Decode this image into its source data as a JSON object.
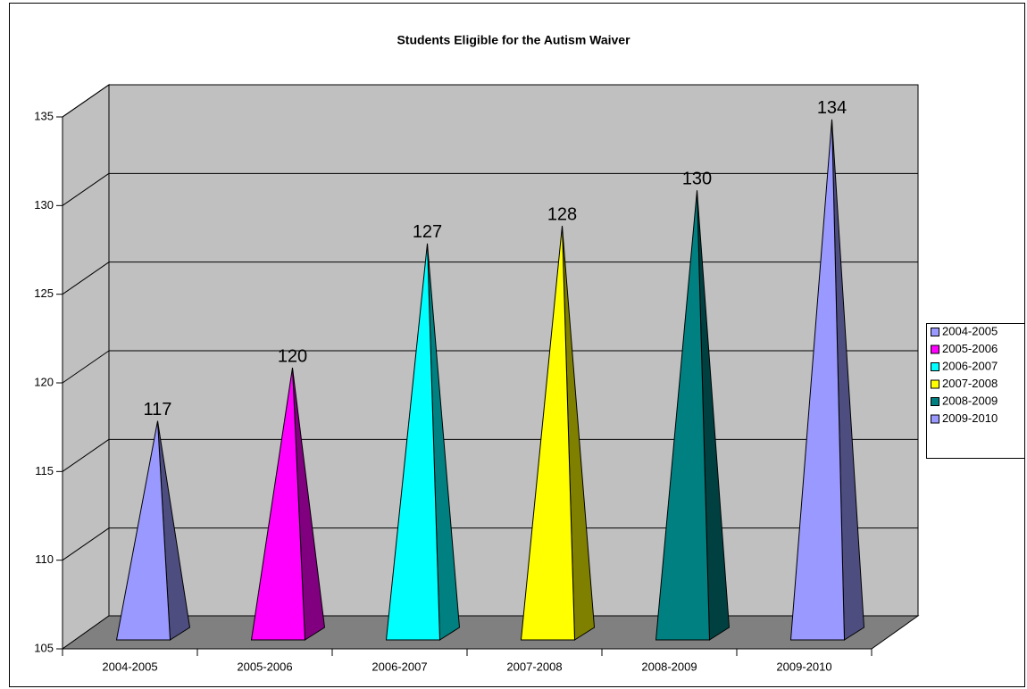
{
  "chart_data": {
    "type": "pyramid",
    "title": "Students Eligible for the Autism Waiver",
    "categories": [
      "2004-2005",
      "2005-2006",
      "2006-2007",
      "2007-2008",
      "2008-2009",
      "2009-2010"
    ],
    "values": [
      117,
      120,
      127,
      128,
      130,
      134
    ],
    "colors": [
      "#9999ff",
      "#ff00ff",
      "#00ffff",
      "#ffff00",
      "#008080",
      "#9999ff"
    ],
    "ylim": [
      105,
      135
    ],
    "yticks": [
      105,
      110,
      115,
      120,
      125,
      130,
      135
    ],
    "grid": true,
    "legend": "right"
  }
}
